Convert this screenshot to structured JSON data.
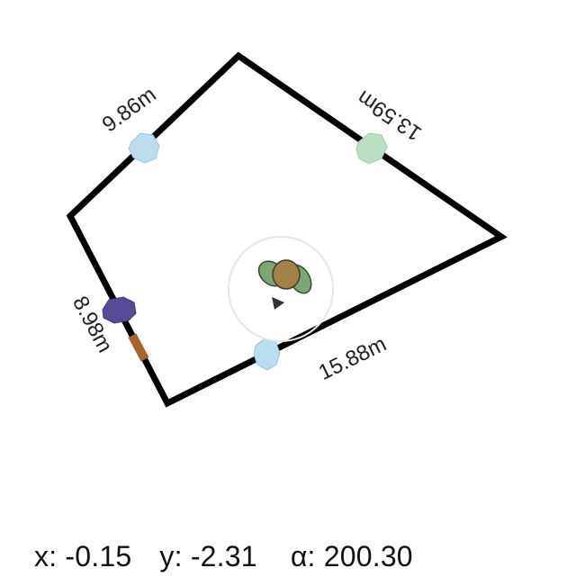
{
  "room": {
    "walls": [
      {
        "label": "9.86m"
      },
      {
        "label": "13.59m"
      },
      {
        "label": "15.88m"
      },
      {
        "label": "8.98m"
      }
    ]
  },
  "markers": [
    {
      "name": "light-blue-stone",
      "color": "#bcdcef"
    },
    {
      "name": "green-stone",
      "color": "#bcdfc4"
    },
    {
      "name": "light-blue-stone",
      "color": "#bcdcef"
    },
    {
      "name": "purple-stone",
      "color": "#574b95"
    },
    {
      "name": "door",
      "color": "#a5652b"
    }
  ],
  "robot": {
    "body_color": "#a08148",
    "wing_color": "#7ea575",
    "ring_color": "#e6e6e6"
  },
  "pose": {
    "x_label": "x:",
    "x": "-0.15",
    "y_label": "y:",
    "y": "-2.31",
    "a_label": "α:",
    "a": "200.30"
  }
}
